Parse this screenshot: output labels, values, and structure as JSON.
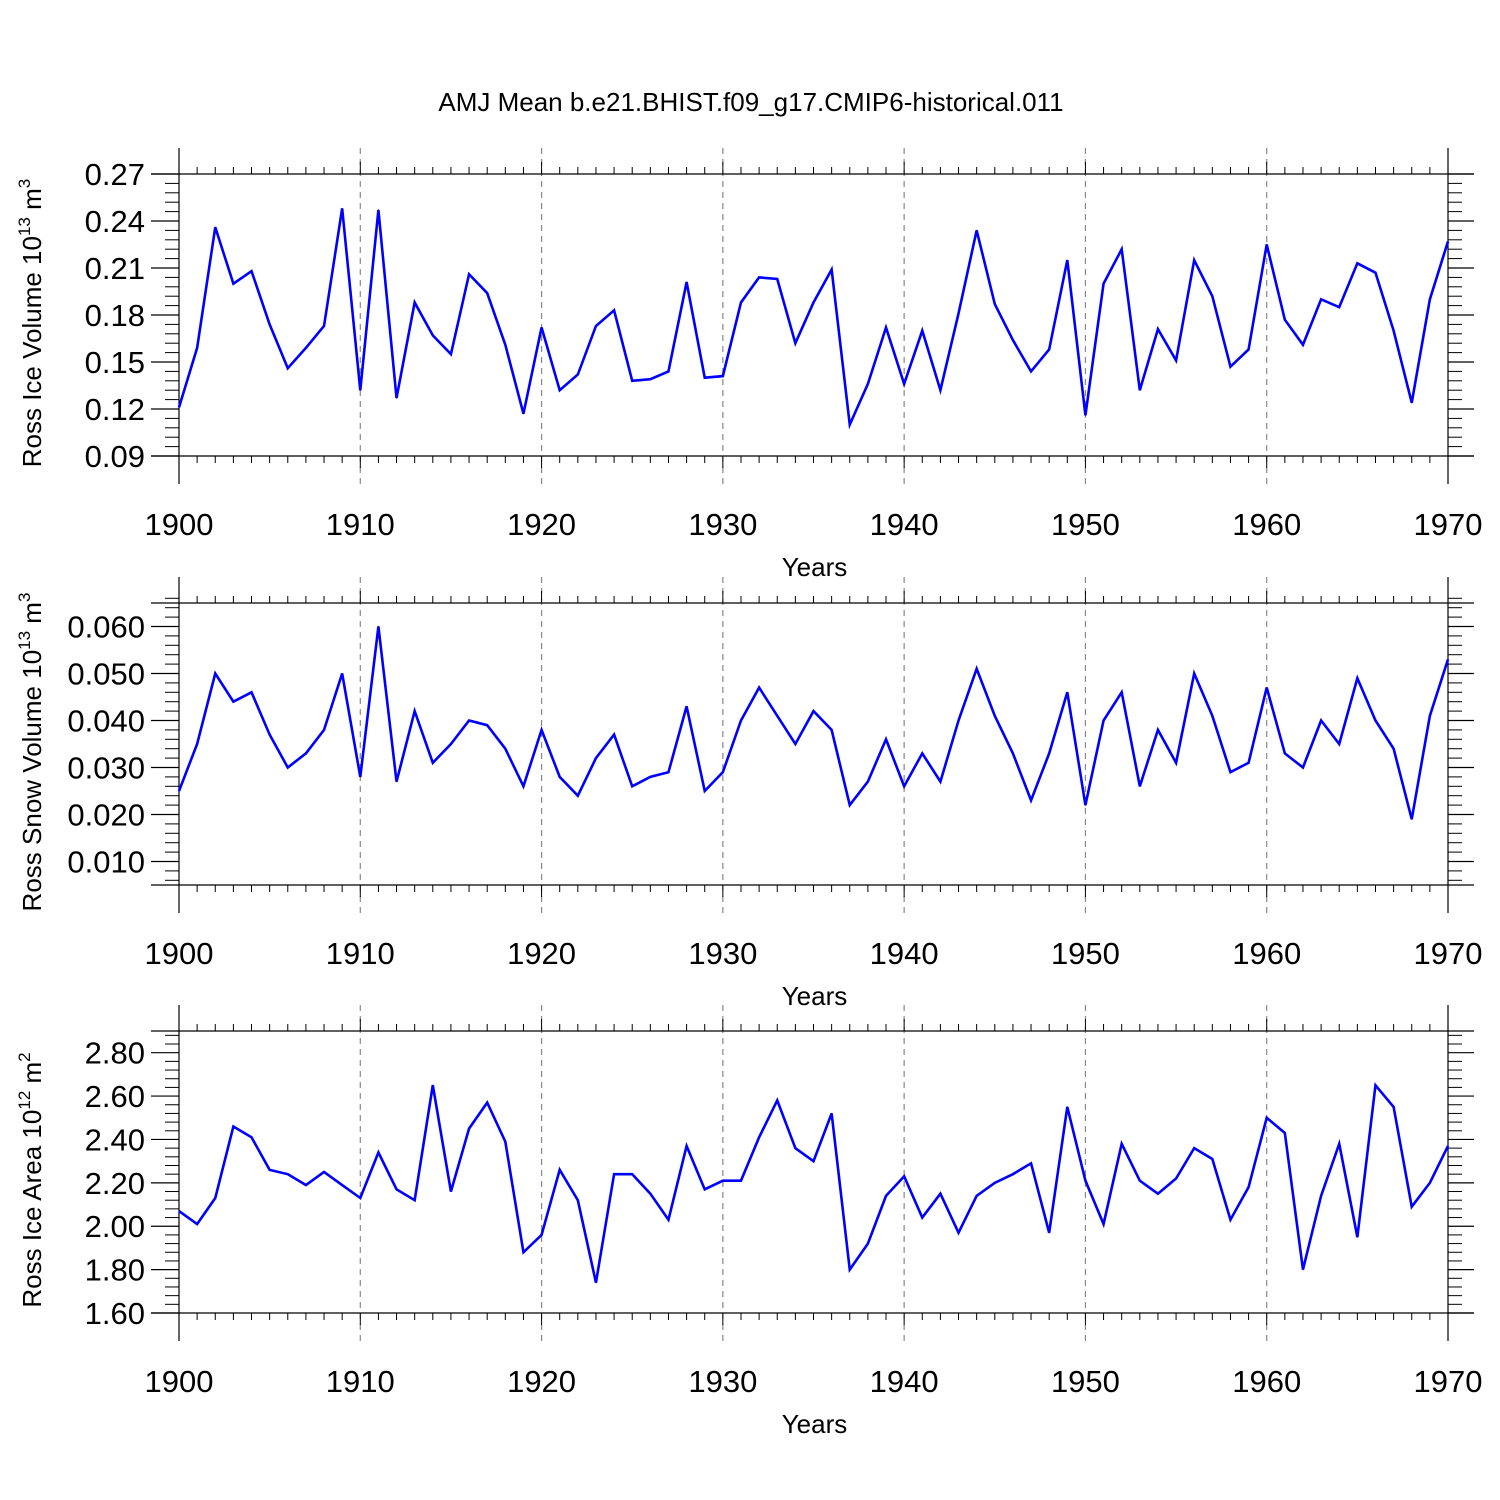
{
  "figure_title": "AMJ Mean b.e21.BHIST.f09_g17.CMIP6-historical.011",
  "line_color": "#0000ff",
  "chart_data": [
    {
      "type": "line",
      "name": "ice-volume",
      "ylabel": "Ross Ice Volume 10",
      "ylabel_exp": "13",
      "ylabel_unit": " m",
      "ylabel_unit_exp": "3",
      "xlabel": "Years",
      "xlim": [
        1900,
        1970
      ],
      "ylim": [
        0.09,
        0.27
      ],
      "yticks": [
        0.09,
        0.12,
        0.15,
        0.18,
        0.21,
        0.24,
        0.27
      ],
      "ytick_labels": [
        "0.09",
        "0.12",
        "0.15",
        "0.18",
        "0.21",
        "0.24",
        "0.27"
      ],
      "xticks": [
        1900,
        1910,
        1920,
        1930,
        1940,
        1950,
        1960,
        1970
      ],
      "xtick_labels": [
        "1900",
        "1910",
        "1920",
        "1930",
        "1940",
        "1950",
        "1960",
        "1970"
      ],
      "gridlines_x": [
        1910,
        1920,
        1930,
        1940,
        1950,
        1960
      ],
      "x_start": 1900,
      "values": [
        0.121,
        0.159,
        0.236,
        0.2,
        0.208,
        0.174,
        0.146,
        0.159,
        0.173,
        0.248,
        0.132,
        0.247,
        0.127,
        0.188,
        0.167,
        0.155,
        0.206,
        0.194,
        0.161,
        0.117,
        0.172,
        0.132,
        0.142,
        0.173,
        0.183,
        0.138,
        0.139,
        0.144,
        0.201,
        0.14,
        0.141,
        0.188,
        0.204,
        0.203,
        0.162,
        0.188,
        0.209,
        0.11,
        0.136,
        0.172,
        0.136,
        0.17,
        0.132,
        0.181,
        0.234,
        0.187,
        0.164,
        0.144,
        0.158,
        0.215,
        0.116,
        0.2,
        0.222,
        0.132,
        0.171,
        0.151,
        0.215,
        0.192,
        0.147,
        0.158,
        0.225,
        0.177,
        0.161,
        0.19,
        0.185,
        0.213,
        0.207,
        0.17,
        0.124,
        0.19,
        0.227
      ]
    },
    {
      "type": "line",
      "name": "snow-volume",
      "ylabel": "Ross Snow Volume 10",
      "ylabel_exp": "13",
      "ylabel_unit": " m",
      "ylabel_unit_exp": "3",
      "xlabel": "Years",
      "xlim": [
        1900,
        1970
      ],
      "ylim": [
        0.005,
        0.065
      ],
      "yticks": [
        0.01,
        0.02,
        0.03,
        0.04,
        0.05,
        0.06
      ],
      "ytick_labels": [
        "0.010",
        "0.020",
        "0.030",
        "0.040",
        "0.050",
        "0.060"
      ],
      "xticks": [
        1900,
        1910,
        1920,
        1930,
        1940,
        1950,
        1960,
        1970
      ],
      "xtick_labels": [
        "1900",
        "1910",
        "1920",
        "1930",
        "1940",
        "1950",
        "1960",
        "1970"
      ],
      "gridlines_x": [
        1910,
        1920,
        1930,
        1940,
        1950,
        1960
      ],
      "x_start": 1900,
      "values": [
        0.025,
        0.035,
        0.05,
        0.044,
        0.046,
        0.037,
        0.03,
        0.033,
        0.038,
        0.05,
        0.028,
        0.06,
        0.027,
        0.042,
        0.031,
        0.035,
        0.04,
        0.039,
        0.034,
        0.026,
        0.038,
        0.028,
        0.024,
        0.032,
        0.037,
        0.026,
        0.028,
        0.029,
        0.043,
        0.025,
        0.029,
        0.04,
        0.047,
        0.041,
        0.035,
        0.042,
        0.038,
        0.022,
        0.027,
        0.036,
        0.026,
        0.033,
        0.027,
        0.04,
        0.051,
        0.041,
        0.033,
        0.023,
        0.033,
        0.046,
        0.022,
        0.04,
        0.046,
        0.026,
        0.038,
        0.031,
        0.05,
        0.041,
        0.029,
        0.031,
        0.047,
        0.033,
        0.03,
        0.04,
        0.035,
        0.049,
        0.04,
        0.034,
        0.019,
        0.041,
        0.053
      ]
    },
    {
      "type": "line",
      "name": "ice-area",
      "ylabel": "Ross Ice Area 10",
      "ylabel_exp": "12",
      "ylabel_unit": " m",
      "ylabel_unit_exp": "2",
      "xlabel": "Years",
      "xlim": [
        1900,
        1970
      ],
      "ylim": [
        1.6,
        2.9
      ],
      "yticks": [
        1.6,
        1.8,
        2.0,
        2.2,
        2.4,
        2.6,
        2.8
      ],
      "ytick_labels": [
        "1.60",
        "1.80",
        "2.00",
        "2.20",
        "2.40",
        "2.60",
        "2.80"
      ],
      "xticks": [
        1900,
        1910,
        1920,
        1930,
        1940,
        1950,
        1960,
        1970
      ],
      "xtick_labels": [
        "1900",
        "1910",
        "1920",
        "1930",
        "1940",
        "1950",
        "1960",
        "1970"
      ],
      "gridlines_x": [
        1910,
        1920,
        1930,
        1940,
        1950,
        1960
      ],
      "x_start": 1900,
      "values": [
        2.07,
        2.01,
        2.13,
        2.46,
        2.41,
        2.26,
        2.24,
        2.19,
        2.25,
        2.19,
        2.13,
        2.34,
        2.17,
        2.12,
        2.65,
        2.16,
        2.45,
        2.57,
        2.39,
        1.88,
        1.96,
        2.26,
        2.12,
        1.74,
        2.24,
        2.24,
        2.15,
        2.03,
        2.37,
        2.17,
        2.21,
        2.21,
        2.41,
        2.58,
        2.36,
        2.3,
        2.52,
        1.8,
        1.92,
        2.14,
        2.23,
        2.04,
        2.15,
        1.97,
        2.14,
        2.2,
        2.24,
        2.29,
        1.97,
        2.55,
        2.21,
        2.01,
        2.38,
        2.21,
        2.15,
        2.22,
        2.36,
        2.31,
        2.03,
        2.18,
        2.5,
        2.43,
        1.8,
        2.14,
        2.38,
        1.95,
        2.65,
        2.55,
        2.09,
        2.2,
        2.37
      ]
    }
  ]
}
